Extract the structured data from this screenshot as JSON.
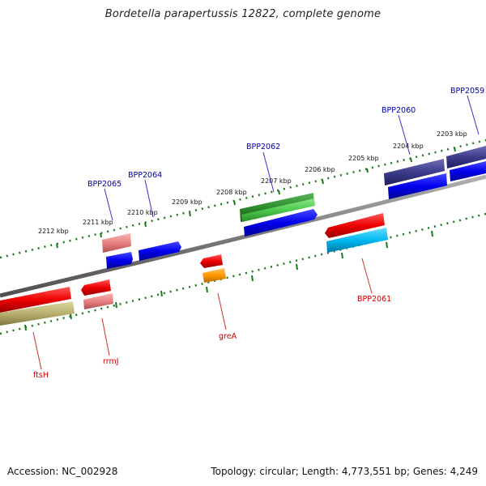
{
  "title": "Bordetella parapertussis 12822, complete genome",
  "footer": {
    "accession": "Accession: NC_002928",
    "info": "Topology: circular; Length: 4,773,551 bp; Genes: 4,249"
  },
  "colors": {
    "backbone": "#808080",
    "ticks": "#1a7a1a",
    "label_blue": "#0000aa",
    "label_red": "#cc0000",
    "red": "#e00000",
    "pink": "#e88888",
    "blue": "#0000ee",
    "navy": "#3c3c8c",
    "green": "#2e8b2e",
    "cyan": "#00b0ee",
    "orange": "#ff9900",
    "olive": "#b8b070"
  },
  "kbp_labels": [
    "2212 kbp",
    "2211 kbp",
    "2210 kbp",
    "2209 kbp",
    "2208 kbp",
    "2207 kbp",
    "2206 kbp",
    "2205 kbp",
    "2204 kbp",
    "2203 kbp"
  ],
  "gene_labels": {
    "BPP2065": "BPP2065",
    "BPP2064": "BPP2064",
    "BPP2062": "BPP2062",
    "BPP2060": "BPP2060",
    "BPP2059": "BPP2059",
    "ftsH": "ftsH",
    "rrmJ": "rrmJ",
    "greA": "greA",
    "BPP2061": "BPP2061"
  }
}
